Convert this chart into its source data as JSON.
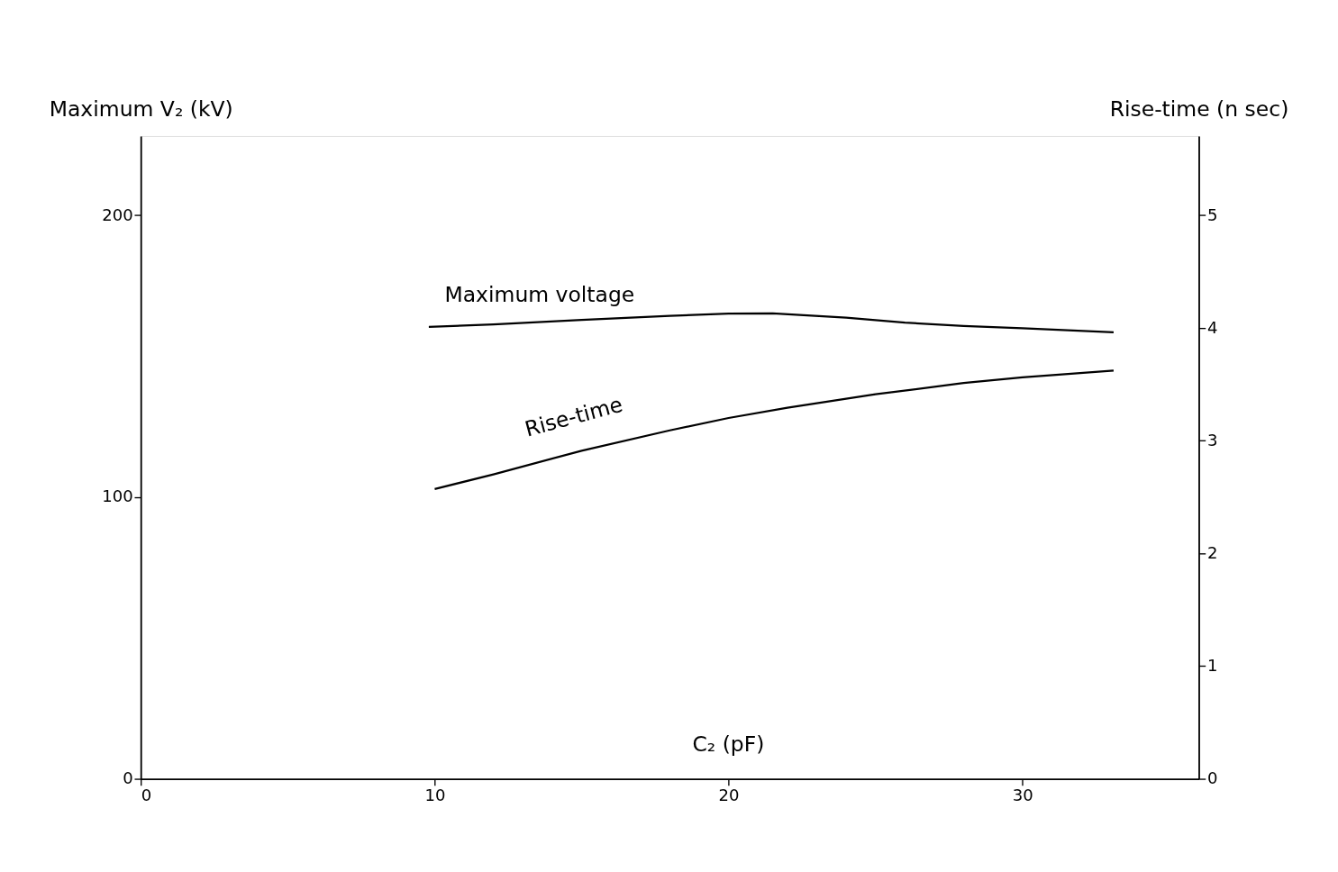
{
  "chart_data": {
    "type": "line",
    "xlabel": "C₂ (pF)",
    "ylabel": "Maximum V₂ (kV)",
    "y2label": "Rise-time (n sec)",
    "xlim": [
      0,
      36
    ],
    "xticks": [
      0,
      10,
      20,
      30
    ],
    "ylim": [
      0,
      228
    ],
    "yticks": [
      0,
      100,
      200
    ],
    "y2lim": [
      0,
      5.7
    ],
    "y2ticks": [
      0,
      1,
      2,
      3,
      4,
      5
    ],
    "grid": false,
    "marker": "none",
    "line_style": "solid",
    "series": [
      {
        "name": "Maximum voltage",
        "color": "#000000",
        "x": [
          9.8,
          12,
          15,
          18,
          20,
          21.5,
          24,
          26,
          28,
          30,
          33.1
        ],
        "values": [
          160.3,
          161.2,
          162.8,
          164.2,
          165,
          165.1,
          163.6,
          161.8,
          160.6,
          159.8,
          158.4
        ]
      },
      {
        "name": "Rise-time",
        "color": "#000000",
        "axis": "y2",
        "x": [
          10,
          12,
          15,
          18,
          20,
          22,
          25,
          28,
          30,
          33.1
        ],
        "values": [
          2.57,
          2.7,
          2.91,
          3.09,
          3.2,
          3.29,
          3.41,
          3.51,
          3.56,
          3.62
        ]
      }
    ]
  }
}
